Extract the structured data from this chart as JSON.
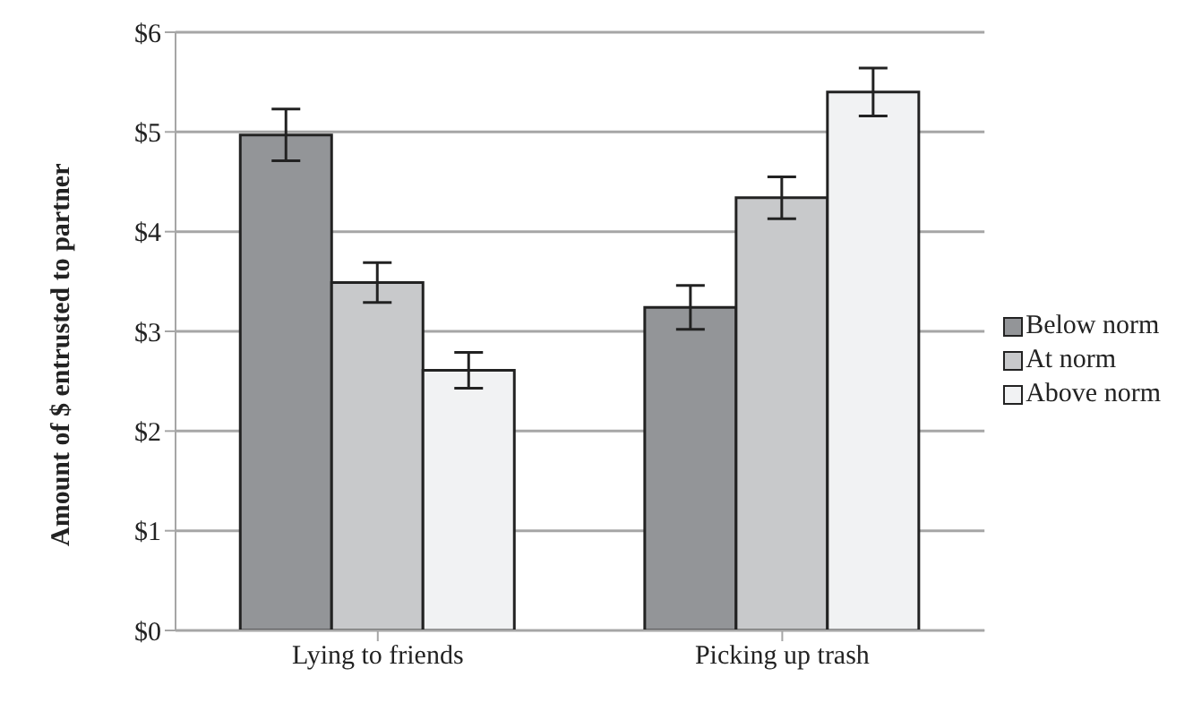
{
  "chart_data": {
    "type": "bar",
    "ylabel": "Amount of $ entrusted to partner",
    "categories": [
      "Lying to friends",
      "Picking up trash"
    ],
    "series": [
      {
        "name": "Below norm",
        "color": "#939598",
        "values": [
          4.97,
          3.24
        ],
        "errors": [
          0.26,
          0.22
        ]
      },
      {
        "name": "At norm",
        "color": "#c8c9cb",
        "values": [
          3.49,
          4.34
        ],
        "errors": [
          0.2,
          0.21
        ]
      },
      {
        "name": "Above norm",
        "color": "#f1f2f3",
        "values": [
          2.61,
          5.4
        ],
        "errors": [
          0.18,
          0.24
        ]
      }
    ],
    "ylim": [
      0,
      6
    ],
    "yticks": [
      {
        "value": 0,
        "label": "$0"
      },
      {
        "value": 1,
        "label": "$1"
      },
      {
        "value": 2,
        "label": "$2"
      },
      {
        "value": 3,
        "label": "$3"
      },
      {
        "value": 4,
        "label": "$4"
      },
      {
        "value": 5,
        "label": "$5"
      },
      {
        "value": 6,
        "label": "$6"
      }
    ],
    "grid": "y",
    "legend": "right"
  }
}
